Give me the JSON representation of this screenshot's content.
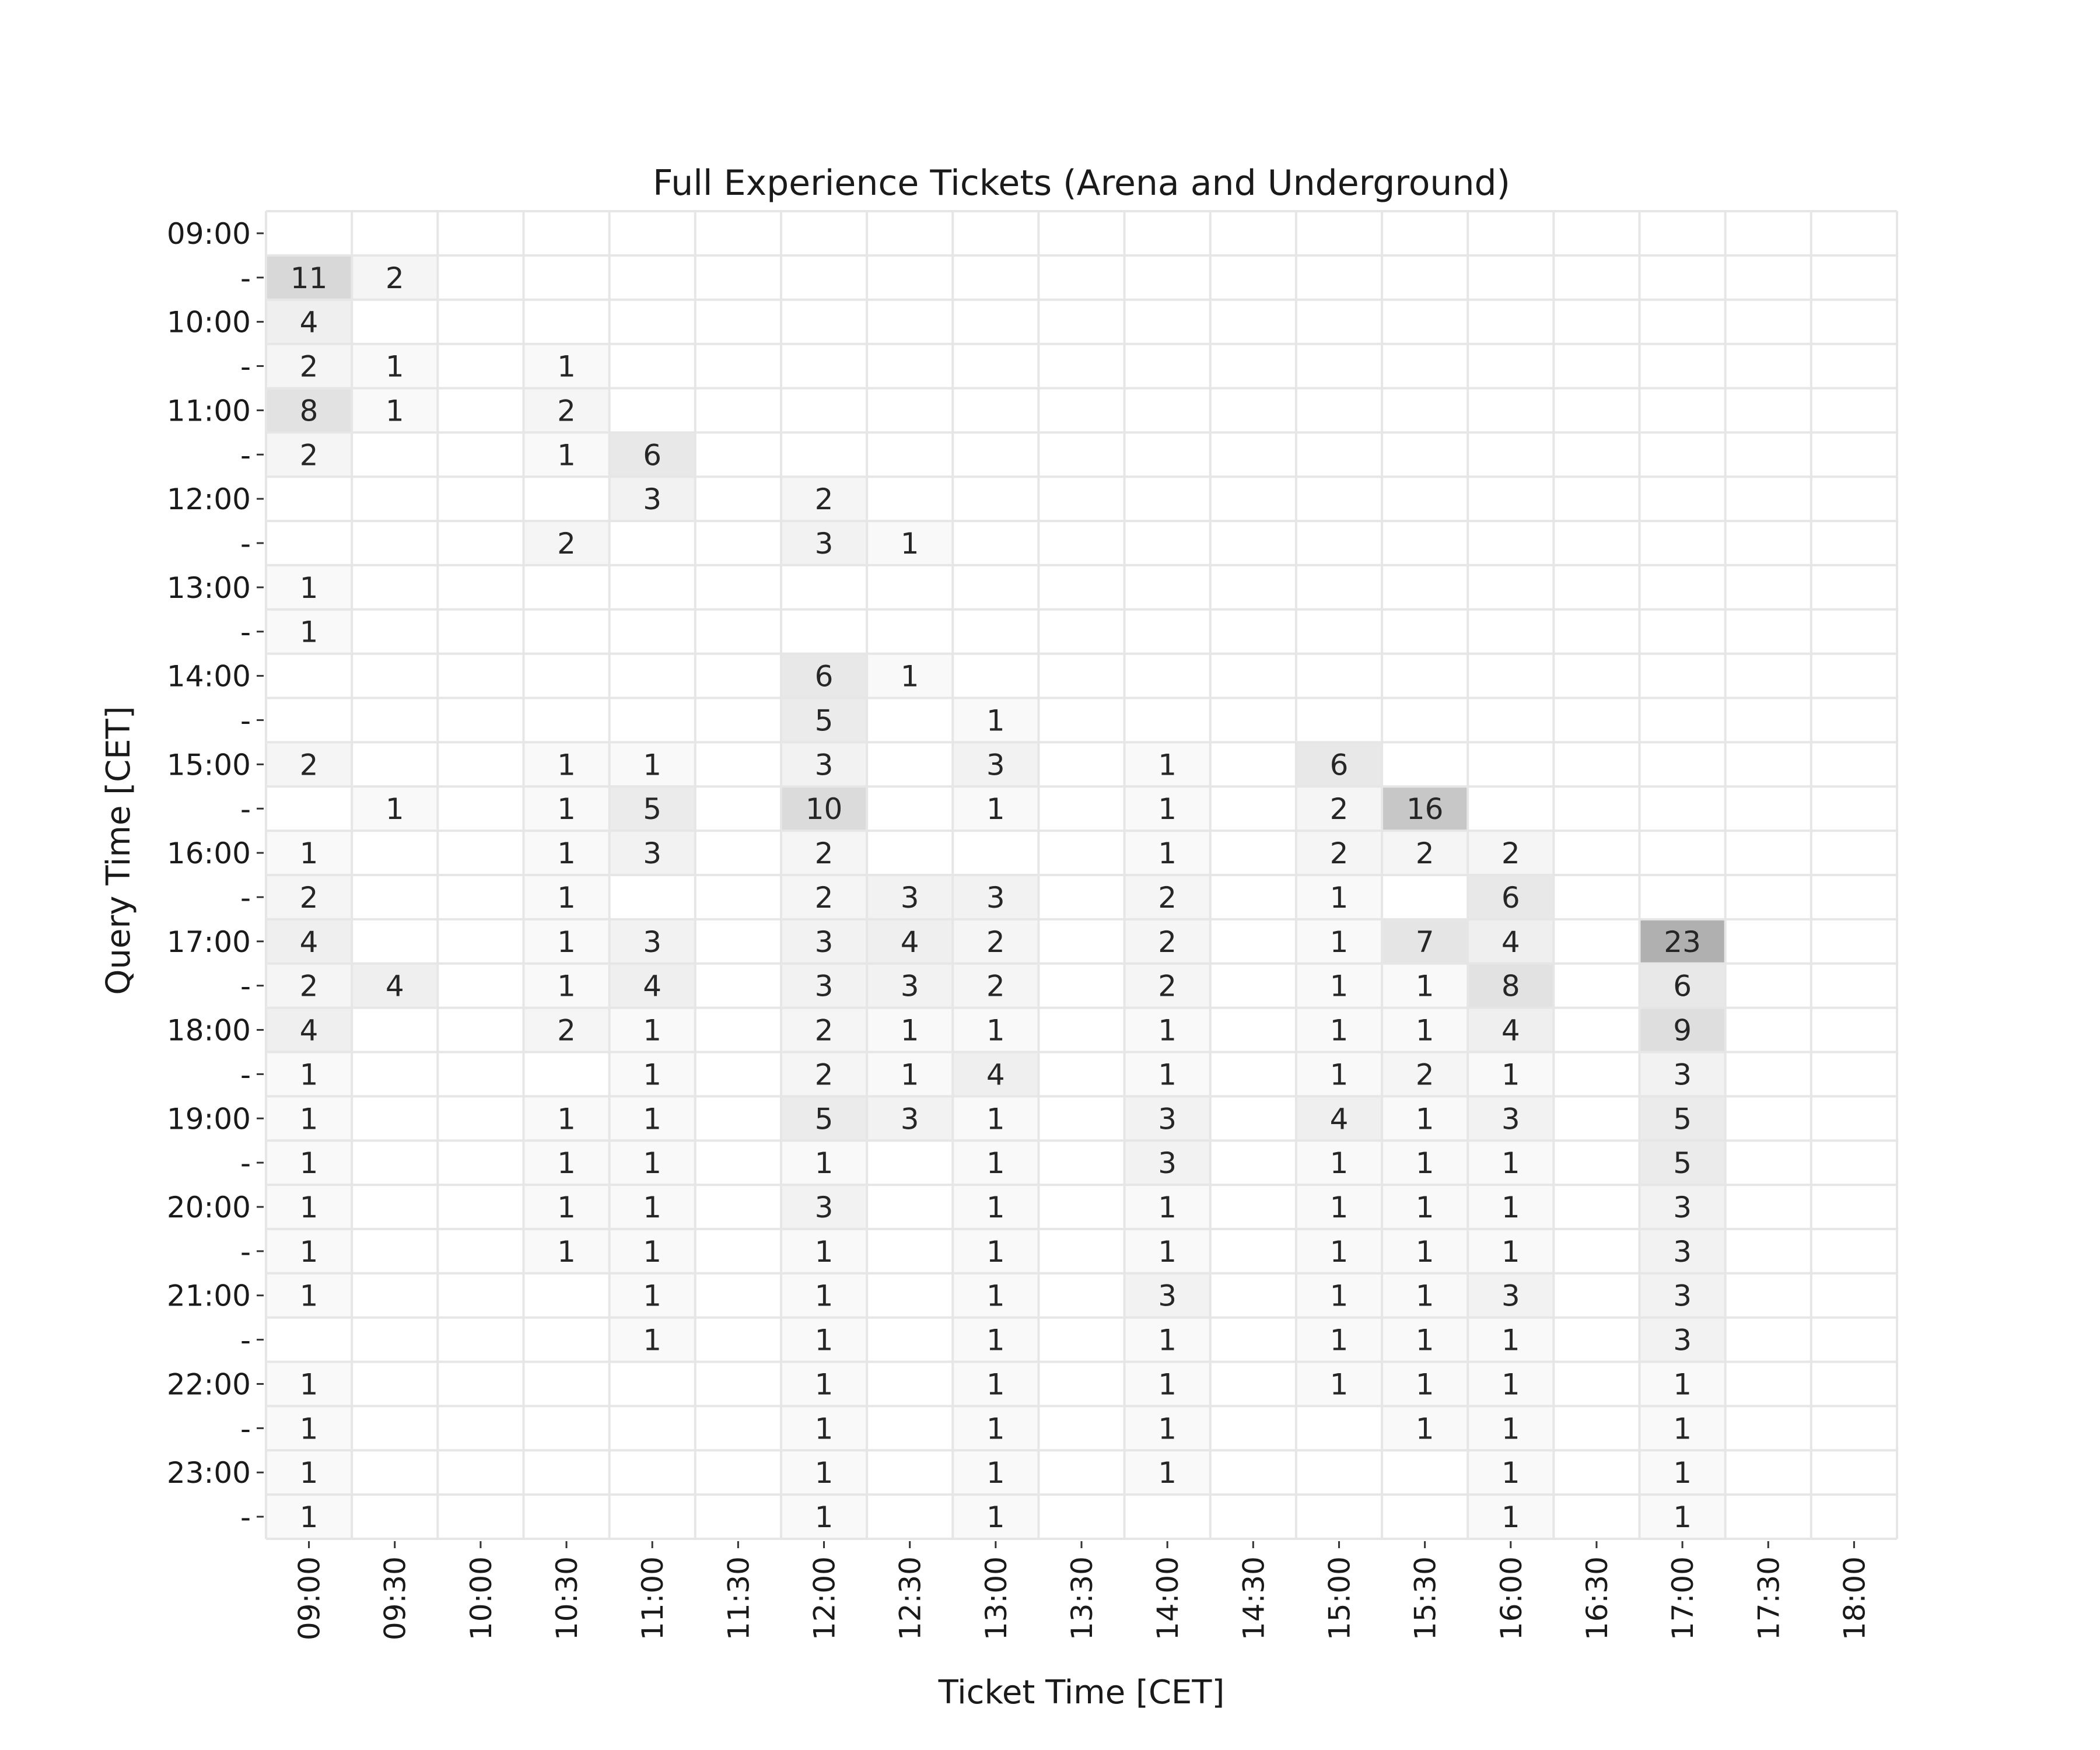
{
  "chart_data": {
    "type": "heatmap",
    "title": "Full Experience Tickets (Arena and Underground)",
    "xlabel": "Ticket Time [CET]",
    "ylabel": "Query Time [CET]",
    "x": [
      "09:00",
      "09:30",
      "10:00",
      "10:30",
      "11:00",
      "11:30",
      "12:00",
      "12:30",
      "13:00",
      "13:30",
      "14:00",
      "14:30",
      "15:00",
      "15:30",
      "16:00",
      "16:30",
      "17:00",
      "17:30",
      "18:00"
    ],
    "y_ticks": [
      "09:00",
      "-",
      "10:00",
      "-",
      "11:00",
      "-",
      "12:00",
      "-",
      "13:00",
      "-",
      "14:00",
      "-",
      "15:00",
      "-",
      "16:00",
      "-",
      "17:00",
      "-",
      "18:00",
      "-",
      "19:00",
      "-",
      "20:00",
      "-",
      "21:00",
      "-",
      "22:00",
      "-",
      "23:00",
      "-"
    ],
    "values": [
      [
        null,
        null,
        null,
        null,
        null,
        null,
        null,
        null,
        null,
        null,
        null,
        null,
        null,
        null,
        null,
        null,
        null,
        null,
        null
      ],
      [
        11,
        2,
        null,
        null,
        null,
        null,
        null,
        null,
        null,
        null,
        null,
        null,
        null,
        null,
        null,
        null,
        null,
        null,
        null
      ],
      [
        4,
        null,
        null,
        null,
        null,
        null,
        null,
        null,
        null,
        null,
        null,
        null,
        null,
        null,
        null,
        null,
        null,
        null,
        null
      ],
      [
        2,
        1,
        null,
        1,
        null,
        null,
        null,
        null,
        null,
        null,
        null,
        null,
        null,
        null,
        null,
        null,
        null,
        null,
        null
      ],
      [
        8,
        1,
        null,
        2,
        null,
        null,
        null,
        null,
        null,
        null,
        null,
        null,
        null,
        null,
        null,
        null,
        null,
        null,
        null
      ],
      [
        2,
        null,
        null,
        1,
        6,
        null,
        null,
        null,
        null,
        null,
        null,
        null,
        null,
        null,
        null,
        null,
        null,
        null,
        null
      ],
      [
        null,
        null,
        null,
        null,
        3,
        null,
        2,
        null,
        null,
        null,
        null,
        null,
        null,
        null,
        null,
        null,
        null,
        null,
        null
      ],
      [
        null,
        null,
        null,
        2,
        null,
        null,
        3,
        1,
        null,
        null,
        null,
        null,
        null,
        null,
        null,
        null,
        null,
        null,
        null
      ],
      [
        1,
        null,
        null,
        null,
        null,
        null,
        null,
        null,
        null,
        null,
        null,
        null,
        null,
        null,
        null,
        null,
        null,
        null,
        null
      ],
      [
        1,
        null,
        null,
        null,
        null,
        null,
        null,
        null,
        null,
        null,
        null,
        null,
        null,
        null,
        null,
        null,
        null,
        null,
        null
      ],
      [
        null,
        null,
        null,
        null,
        null,
        null,
        6,
        1,
        null,
        null,
        null,
        null,
        null,
        null,
        null,
        null,
        null,
        null,
        null
      ],
      [
        null,
        null,
        null,
        null,
        null,
        null,
        5,
        null,
        1,
        null,
        null,
        null,
        null,
        null,
        null,
        null,
        null,
        null,
        null
      ],
      [
        2,
        null,
        null,
        1,
        1,
        null,
        3,
        null,
        3,
        null,
        1,
        null,
        6,
        null,
        null,
        null,
        null,
        null,
        null
      ],
      [
        null,
        1,
        null,
        1,
        5,
        null,
        10,
        null,
        1,
        null,
        1,
        null,
        2,
        16,
        null,
        null,
        null,
        null,
        null
      ],
      [
        1,
        null,
        null,
        1,
        3,
        null,
        2,
        null,
        null,
        null,
        1,
        null,
        2,
        2,
        2,
        null,
        null,
        null,
        null
      ],
      [
        2,
        null,
        null,
        1,
        null,
        null,
        2,
        3,
        3,
        null,
        2,
        null,
        1,
        null,
        6,
        null,
        null,
        null,
        null
      ],
      [
        4,
        null,
        null,
        1,
        3,
        null,
        3,
        4,
        2,
        null,
        2,
        null,
        1,
        7,
        4,
        null,
        23,
        null,
        null
      ],
      [
        2,
        4,
        null,
        1,
        4,
        null,
        3,
        3,
        2,
        null,
        2,
        null,
        1,
        1,
        8,
        null,
        6,
        null,
        null
      ],
      [
        4,
        null,
        null,
        2,
        1,
        null,
        2,
        1,
        1,
        null,
        1,
        null,
        1,
        1,
        4,
        null,
        9,
        null,
        null
      ],
      [
        1,
        null,
        null,
        null,
        1,
        null,
        2,
        1,
        4,
        null,
        1,
        null,
        1,
        2,
        1,
        null,
        3,
        null,
        null
      ],
      [
        1,
        null,
        null,
        1,
        1,
        null,
        5,
        3,
        1,
        null,
        3,
        null,
        4,
        1,
        3,
        null,
        5,
        null,
        null
      ],
      [
        1,
        null,
        null,
        1,
        1,
        null,
        1,
        null,
        1,
        null,
        3,
        null,
        1,
        1,
        1,
        null,
        5,
        null,
        null
      ],
      [
        1,
        null,
        null,
        1,
        1,
        null,
        3,
        null,
        1,
        null,
        1,
        null,
        1,
        1,
        1,
        null,
        3,
        null,
        null
      ],
      [
        1,
        null,
        null,
        1,
        1,
        null,
        1,
        null,
        1,
        null,
        1,
        null,
        1,
        1,
        1,
        null,
        3,
        null,
        null
      ],
      [
        1,
        null,
        null,
        null,
        1,
        null,
        1,
        null,
        1,
        null,
        3,
        null,
        1,
        1,
        3,
        null,
        3,
        null,
        null
      ],
      [
        null,
        null,
        null,
        null,
        1,
        null,
        1,
        null,
        1,
        null,
        1,
        null,
        1,
        1,
        1,
        null,
        3,
        null,
        null
      ],
      [
        1,
        null,
        null,
        null,
        null,
        null,
        1,
        null,
        1,
        null,
        1,
        null,
        1,
        1,
        1,
        null,
        1,
        null,
        null
      ],
      [
        1,
        null,
        null,
        null,
        null,
        null,
        1,
        null,
        1,
        null,
        1,
        null,
        null,
        1,
        1,
        null,
        1,
        null,
        null
      ],
      [
        1,
        null,
        null,
        null,
        null,
        null,
        1,
        null,
        1,
        null,
        1,
        null,
        null,
        null,
        1,
        null,
        1,
        null,
        null
      ],
      [
        1,
        null,
        null,
        null,
        null,
        null,
        1,
        null,
        1,
        null,
        null,
        null,
        null,
        null,
        1,
        null,
        1,
        null,
        null
      ]
    ],
    "vmax": 23,
    "colormap": "greys",
    "grid": true,
    "legend": "none"
  }
}
